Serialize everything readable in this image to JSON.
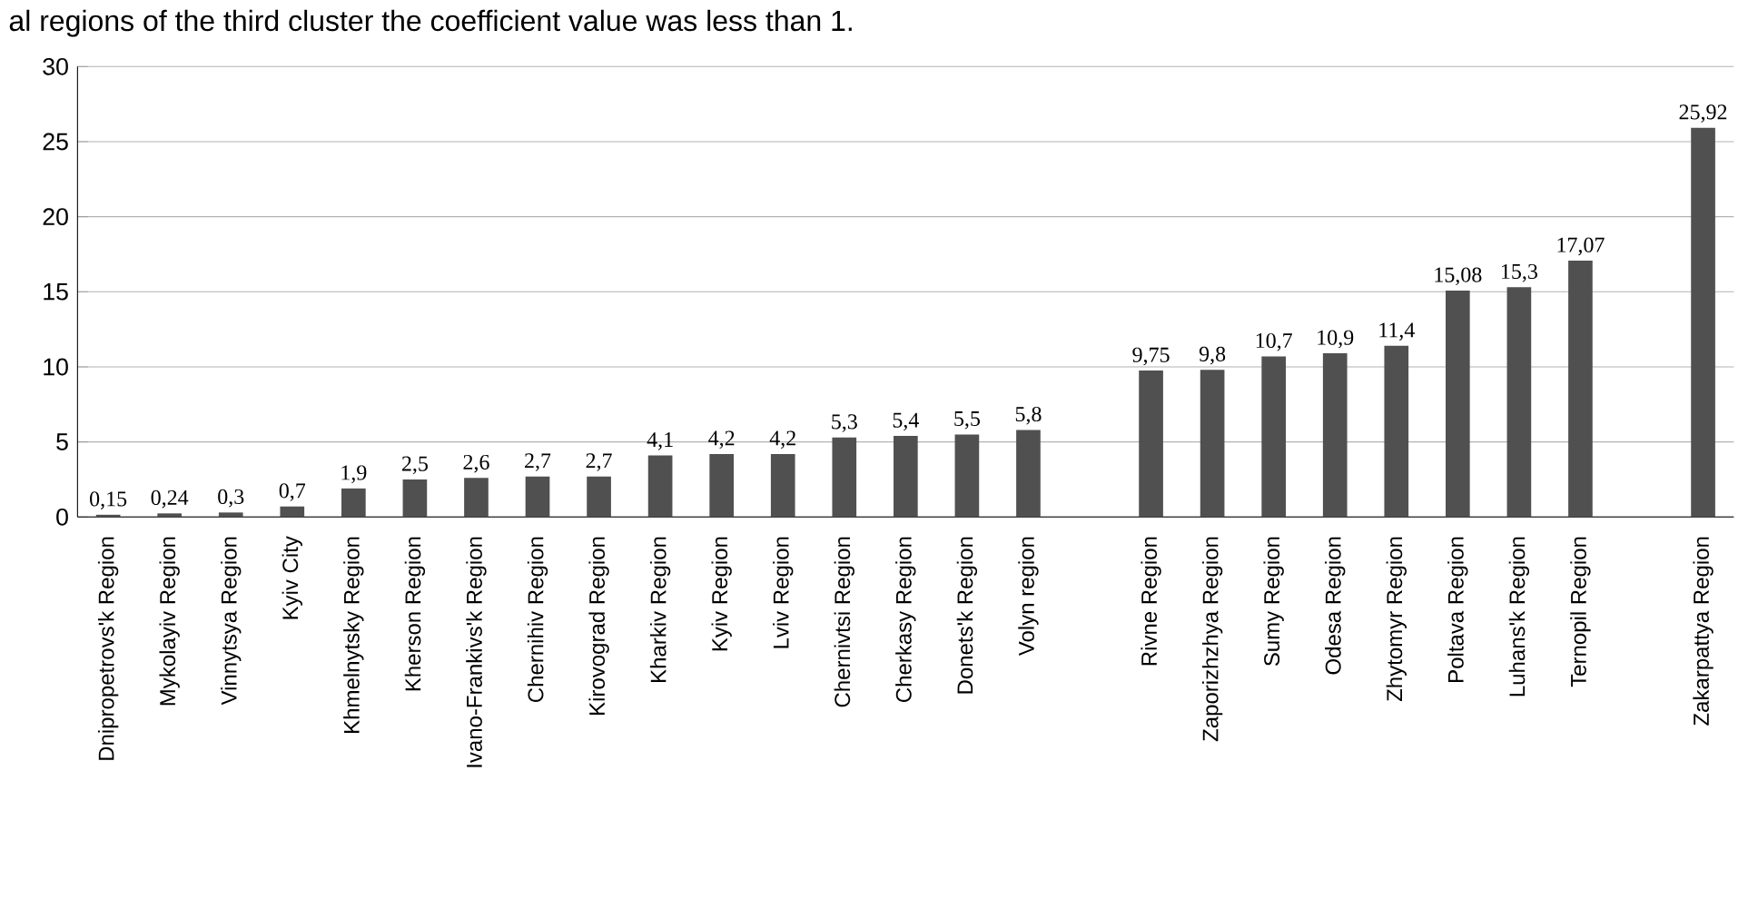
{
  "chart_data": {
    "type": "bar",
    "color": "#505050",
    "grid": "y",
    "ylim": [
      0,
      30
    ],
    "yticks": [
      0,
      5,
      10,
      15,
      20,
      25,
      30
    ],
    "annotations": [
      "al regions of the third cluster the coefficient value was less than 1."
    ],
    "categories": [
      "Dnipropetrovs'k Region",
      "Mykolayiv Region",
      "Vinnytsya Region",
      "Kyiv  City",
      "Khmelnytsky Region",
      "Kherson Region",
      "Ivano-Frankivs'k Region",
      "Chernihiv Region",
      "Kirovograd Region",
      "Kharkiv Region",
      "Kyiv Region",
      "Lviv Region",
      "Chernivtsi Region",
      "Cherkasy Region",
      "Donets'k Region",
      "Volyn region",
      null,
      "Rivne Region",
      "Zaporizhzhya Region",
      "Sumy Region",
      "Odesa Region",
      "Zhytomyr Region",
      "Poltava Region",
      "Luhans'k Region",
      "Ternopil Region",
      null,
      "Zakarpattya Region"
    ],
    "values": [
      0.15,
      0.24,
      0.3,
      0.7,
      1.9,
      2.5,
      2.6,
      2.7,
      2.7,
      4.1,
      4.2,
      4.2,
      5.3,
      5.4,
      5.5,
      5.8,
      null,
      9.75,
      9.8,
      10.7,
      10.9,
      11.4,
      15.08,
      15.3,
      17.07,
      null,
      25.92
    ],
    "value_labels": [
      "0,15",
      "0,24",
      "0,3",
      "0,7",
      "1,9",
      "2,5",
      "2,6",
      "2,7",
      "2,7",
      "4,1",
      "4,2",
      "4,2",
      "5,3",
      "5,4",
      "5,5",
      "5,8",
      null,
      "9,75",
      "9,8",
      "10,7",
      "10,9",
      "11,4",
      "15,08",
      "15,3",
      "17,07",
      null,
      "25,92"
    ]
  }
}
